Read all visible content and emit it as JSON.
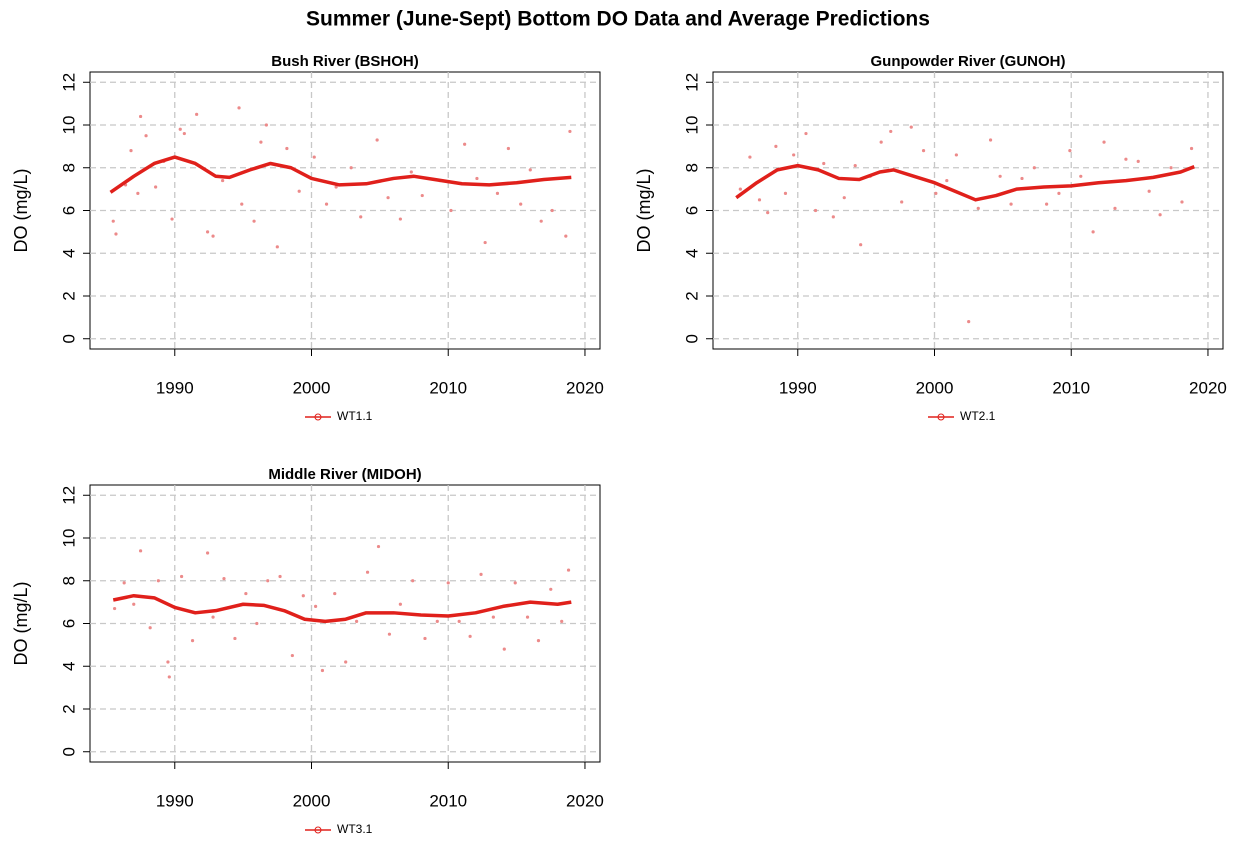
{
  "title": "Summer (June-Sept) Bottom DO Data and Average Predictions",
  "chart_data": [
    {
      "type": "scatter",
      "title": "Bush River (BSHOH)",
      "ylabel": "DO (mg/L)",
      "grid": true,
      "xlim": [
        1983.8,
        2021.1
      ],
      "ylim": [
        -0.48,
        12.48
      ],
      "xticks": [
        1990,
        2000,
        2010,
        2020
      ],
      "yticks": [
        0,
        2,
        4,
        6,
        8,
        10,
        12
      ],
      "series": [
        {
          "name": "WT1.1",
          "color": "#e0201b",
          "x": [
            1985.3,
            1987,
            1988.5,
            1990,
            1991.5,
            1993,
            1994,
            1995.5,
            1997,
            1998.5,
            2000,
            2002,
            2004,
            2006,
            2007.5,
            2009,
            2011,
            2013,
            2015,
            2017,
            2019
          ],
          "values": [
            6.85,
            7.6,
            8.2,
            8.5,
            8.2,
            7.6,
            7.55,
            7.9,
            8.2,
            8.0,
            7.5,
            7.2,
            7.25,
            7.5,
            7.6,
            7.45,
            7.25,
            7.2,
            7.3,
            7.45,
            7.55
          ]
        }
      ],
      "points": {
        "color": "#ec8a8a",
        "x": [
          1985.5,
          1985.7,
          1986.4,
          1986.8,
          1987.3,
          1987.5,
          1987.9,
          1988.6,
          1989.2,
          1989.8,
          1990.4,
          1990.7,
          1991.6,
          1992.4,
          1992.8,
          1993.5,
          1994.7,
          1994.9,
          1995.8,
          1996.3,
          1996.7,
          1997.5,
          1998.2,
          1999.1,
          2000.2,
          2001.1,
          2001.8,
          2002.9,
          2003.6,
          2004.8,
          2005.6,
          2006.5,
          2007.3,
          2008.1,
          2009.4,
          2010.2,
          2011.2,
          2012.1,
          2012.7,
          2013.6,
          2014.4,
          2015.3,
          2016.0,
          2016.8,
          2017.6,
          2018.6,
          2018.9
        ],
        "values": [
          5.5,
          4.9,
          7.2,
          8.8,
          6.8,
          10.4,
          9.5,
          7.1,
          8.3,
          5.6,
          9.8,
          9.6,
          10.5,
          5.0,
          4.8,
          7.4,
          10.8,
          6.3,
          5.5,
          9.2,
          10.0,
          4.3,
          8.9,
          6.9,
          8.5,
          6.3,
          7.1,
          8.0,
          5.7,
          9.3,
          6.6,
          5.6,
          7.8,
          6.7,
          7.4,
          6.0,
          9.1,
          7.5,
          4.5,
          6.8,
          8.9,
          6.3,
          7.9,
          5.5,
          6.0,
          4.8,
          9.7
        ]
      }
    },
    {
      "type": "scatter",
      "title": "Gunpowder River (GUNOH)",
      "ylabel": "DO (mg/L)",
      "grid": true,
      "xlim": [
        1983.8,
        2021.1
      ],
      "ylim": [
        -0.48,
        12.48
      ],
      "xticks": [
        1990,
        2000,
        2010,
        2020
      ],
      "yticks": [
        0,
        2,
        4,
        6,
        8,
        10,
        12
      ],
      "series": [
        {
          "name": "WT2.1",
          "color": "#e0201b",
          "x": [
            1985.5,
            1987,
            1988.5,
            1990,
            1991.5,
            1993,
            1994.5,
            1996,
            1997,
            1998.5,
            2000,
            2001.5,
            2003,
            2004.5,
            2006,
            2008,
            2010,
            2012,
            2014,
            2016,
            2018,
            2019
          ],
          "values": [
            6.6,
            7.3,
            7.9,
            8.1,
            7.9,
            7.5,
            7.45,
            7.8,
            7.9,
            7.6,
            7.3,
            6.9,
            6.5,
            6.7,
            7.0,
            7.1,
            7.15,
            7.3,
            7.4,
            7.55,
            7.8,
            8.05
          ]
        }
      ],
      "points": {
        "color": "#ec8a8a",
        "x": [
          1985.8,
          1986.5,
          1987.2,
          1987.8,
          1988.4,
          1989.1,
          1989.7,
          1990.6,
          1991.3,
          1991.9,
          1992.6,
          1993.4,
          1994.2,
          1994.6,
          1995.3,
          1996.1,
          1996.8,
          1997.6,
          1998.3,
          1999.2,
          2000.1,
          2000.9,
          2001.6,
          2002.5,
          2003.2,
          2004.1,
          2004.8,
          2005.6,
          2006.4,
          2007.3,
          2008.2,
          2009.1,
          2009.9,
          2010.7,
          2011.6,
          2012.4,
          2013.2,
          2014.0,
          2014.9,
          2015.7,
          2016.5,
          2017.3,
          2018.1,
          2018.8
        ],
        "values": [
          7.0,
          8.5,
          6.5,
          5.9,
          9.0,
          6.8,
          8.6,
          9.6,
          6.0,
          8.2,
          5.7,
          6.6,
          8.1,
          4.4,
          7.6,
          9.2,
          9.7,
          6.4,
          9.9,
          8.8,
          6.8,
          7.4,
          8.6,
          0.8,
          6.1,
          9.3,
          7.6,
          6.3,
          7.5,
          8.0,
          6.3,
          6.8,
          8.8,
          7.6,
          5.0,
          9.2,
          6.1,
          8.4,
          8.3,
          6.9,
          5.8,
          8.0,
          6.4,
          8.9
        ]
      }
    },
    {
      "type": "scatter",
      "title": "Middle River (MIDOH)",
      "ylabel": "DO (mg/L)",
      "grid": true,
      "xlim": [
        1983.8,
        2021.1
      ],
      "ylim": [
        -0.48,
        12.48
      ],
      "xticks": [
        1990,
        2000,
        2010,
        2020
      ],
      "yticks": [
        0,
        2,
        4,
        6,
        8,
        10,
        12
      ],
      "series": [
        {
          "name": "WT3.1",
          "color": "#e0201b",
          "x": [
            1985.5,
            1987,
            1988.5,
            1990,
            1991.5,
            1993,
            1995,
            1996.5,
            1998,
            1999.5,
            2001,
            2002.5,
            2004,
            2006,
            2008,
            2010,
            2012,
            2014,
            2016,
            2018,
            2019
          ],
          "values": [
            7.1,
            7.3,
            7.2,
            6.75,
            6.5,
            6.6,
            6.9,
            6.85,
            6.6,
            6.2,
            6.1,
            6.2,
            6.5,
            6.5,
            6.4,
            6.35,
            6.5,
            6.8,
            7.0,
            6.9,
            7.0
          ]
        }
      ],
      "points": {
        "color": "#ec8a8a",
        "x": [
          1985.6,
          1986.3,
          1987.0,
          1987.5,
          1988.2,
          1988.8,
          1989.5,
          1989.6,
          1990.5,
          1991.3,
          1992.4,
          1992.8,
          1993.6,
          1994.4,
          1995.2,
          1996.0,
          1996.8,
          1997.7,
          1998.6,
          1999.4,
          2000.3,
          2000.8,
          2001.7,
          2002.5,
          2003.3,
          2004.1,
          2004.9,
          2005.7,
          2006.5,
          2007.4,
          2008.3,
          2009.2,
          2010.0,
          2010.8,
          2011.6,
          2012.4,
          2013.3,
          2014.1,
          2014.9,
          2015.8,
          2016.6,
          2017.5,
          2018.3,
          2018.8
        ],
        "values": [
          6.7,
          7.9,
          6.9,
          9.4,
          5.8,
          8.0,
          4.2,
          3.5,
          8.2,
          5.2,
          9.3,
          6.3,
          8.1,
          5.3,
          7.4,
          6.0,
          8.0,
          8.2,
          4.5,
          7.3,
          6.8,
          3.8,
          7.4,
          4.2,
          6.1,
          8.4,
          9.6,
          5.5,
          6.9,
          8.0,
          5.3,
          6.1,
          7.9,
          6.1,
          5.4,
          8.3,
          6.3,
          4.8,
          7.9,
          6.3,
          5.2,
          7.6,
          6.1,
          8.5
        ]
      }
    }
  ]
}
